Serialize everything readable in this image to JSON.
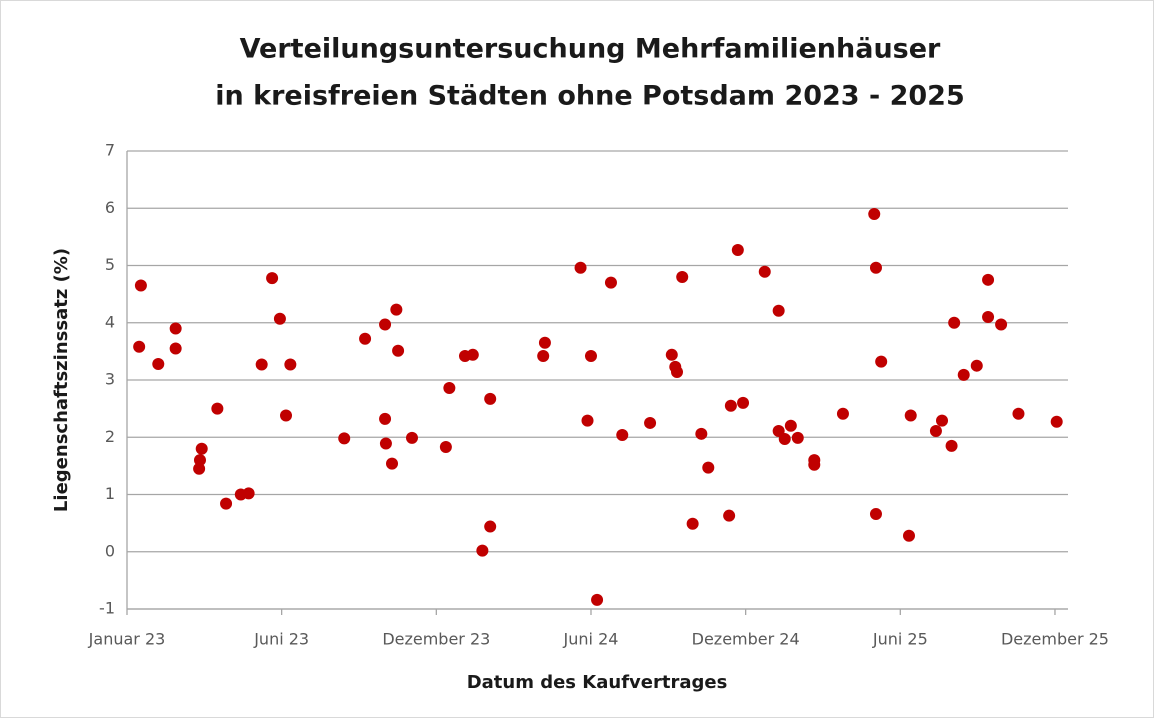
{
  "chart_data": {
    "type": "scatter",
    "title": [
      "Verteilungsuntersuchung Mehrfamilienhäuser",
      "in kreisfreien Städten ohne Potsdam 2023 - 2025"
    ],
    "x_label": "Datum des Kaufvertrages",
    "y_label": "Liegenschaftszinssatz (%)",
    "color": "#c00000",
    "grid": true,
    "xlim": [
      44927,
      46010
    ],
    "xticks": [
      {
        "value": 44927,
        "label": "Januar 23"
      },
      {
        "value": 45105,
        "label": "Juni 23"
      },
      {
        "value": 45283,
        "label": "Dezember 23"
      },
      {
        "value": 45461,
        "label": "Juni 24"
      },
      {
        "value": 45639,
        "label": "Dezember 24"
      },
      {
        "value": 45817,
        "label": "Juni 25"
      },
      {
        "value": 45995,
        "label": "Dezember 25"
      }
    ],
    "ylim": [
      -1,
      7
    ],
    "yticks": [
      -1,
      0,
      1,
      2,
      3,
      4,
      5,
      6,
      7
    ],
    "x": [
      44941,
      44943,
      44963,
      44983,
      44983,
      45010,
      45011,
      45013,
      45031,
      45041,
      45058,
      45067,
      45082,
      45094,
      45103,
      45110,
      45115,
      45177,
      45201,
      45224,
      45224,
      45225,
      45232,
      45237,
      45239,
      45255,
      45294,
      45298,
      45316,
      45325,
      45336,
      45345,
      45345,
      45406,
      45408,
      45449,
      45457,
      45461,
      45468,
      45484,
      45497,
      45529,
      45554,
      45558,
      45560,
      45566,
      45578,
      45588,
      45596,
      45620,
      45622,
      45630,
      45636,
      45661,
      45677,
      45677,
      45684,
      45691,
      45699,
      45718,
      45718,
      45751,
      45787,
      45789,
      45789,
      45795,
      45827,
      45829,
      45858,
      45865,
      45876,
      45879,
      45890,
      45905,
      45918,
      45918,
      45933,
      45953,
      45997
    ],
    "values": [
      3.58,
      4.65,
      3.28,
      3.9,
      3.55,
      1.45,
      1.6,
      1.8,
      2.5,
      0.84,
      1.0,
      1.02,
      3.27,
      4.78,
      4.07,
      2.38,
      3.27,
      1.98,
      3.72,
      3.97,
      2.32,
      1.89,
      1.54,
      4.23,
      3.51,
      1.99,
      1.83,
      2.86,
      3.42,
      3.44,
      0.02,
      2.67,
      0.44,
      3.42,
      3.65,
      4.96,
      2.29,
      3.42,
      -0.84,
      4.7,
      2.04,
      2.25,
      3.44,
      3.23,
      3.14,
      4.8,
      0.49,
      2.06,
      1.47,
      0.63,
      2.55,
      5.27,
      2.6,
      4.89,
      4.21,
      2.11,
      1.97,
      2.2,
      1.99,
      1.6,
      1.52,
      2.41,
      5.9,
      4.96,
      0.66,
      3.32,
      0.28,
      2.38,
      2.11,
      2.29,
      1.85,
      4.0,
      3.09,
      3.25,
      4.75,
      4.1,
      3.97,
      2.41,
      2.27
    ]
  }
}
